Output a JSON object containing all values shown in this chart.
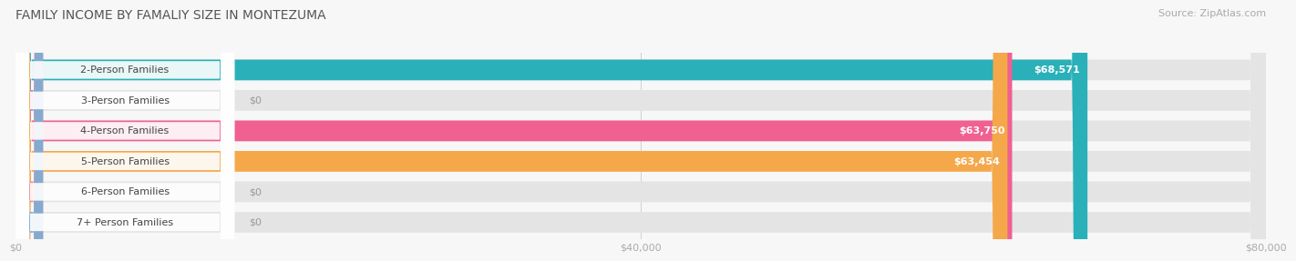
{
  "title": "FAMILY INCOME BY FAMALIY SIZE IN MONTEZUMA",
  "source": "Source: ZipAtlas.com",
  "categories": [
    "2-Person Families",
    "3-Person Families",
    "4-Person Families",
    "5-Person Families",
    "6-Person Families",
    "7+ Person Families"
  ],
  "values": [
    68571,
    0,
    63750,
    63454,
    0,
    0
  ],
  "bar_colors": [
    "#2ab0b8",
    "#9999cc",
    "#f06090",
    "#f5a84a",
    "#f09090",
    "#85aad0"
  ],
  "value_labels": [
    "$68,571",
    "$0",
    "$63,750",
    "$63,454",
    "$0",
    "$0"
  ],
  "xlim": [
    0,
    80000
  ],
  "xticks": [
    0,
    40000,
    80000
  ],
  "xtick_labels": [
    "$0",
    "$40,000",
    "$80,000"
  ],
  "background_color": "#f7f7f7",
  "bar_bg_color": "#e4e4e4",
  "title_fontsize": 10,
  "source_fontsize": 8,
  "label_fontsize": 8,
  "value_fontsize": 8
}
